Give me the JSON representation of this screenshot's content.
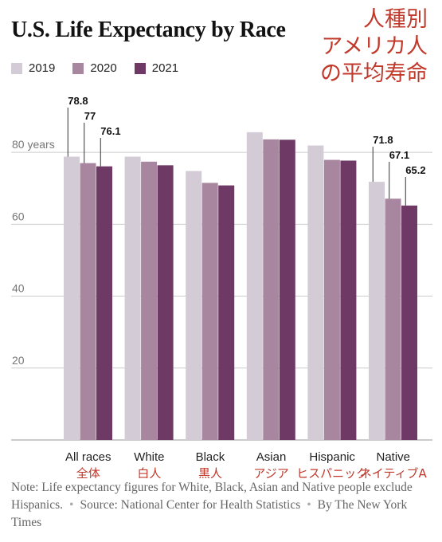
{
  "title": "U.S. Life Expectancy by Race",
  "jp_title": [
    "人種別",
    "アメリカ人",
    "の平均寿命"
  ],
  "note": {
    "text": "Note: Life expectancy figures for White, Black, Asian and Native people exclude Hispanics.",
    "source": "Source: National Center for Health Statistics",
    "credit": "By The New York Times"
  },
  "colors": {
    "2019": "#d3cbd6",
    "2020": "#a8869f",
    "2021": "#6e3a65",
    "grid": "#cccccc",
    "annotation": "#c0392b"
  },
  "chart_data": {
    "type": "bar",
    "title": "U.S. Life Expectancy by Race",
    "categories": [
      "All races",
      "White",
      "Black",
      "Asian",
      "Hispanic",
      "Native"
    ],
    "categories_jp": [
      "全体",
      "白人",
      "黒人",
      "アジア",
      "ヒスパニック",
      "ネイティブA"
    ],
    "series": [
      {
        "name": "2019",
        "values": [
          78.8,
          78.8,
          74.8,
          85.6,
          81.9,
          71.8
        ]
      },
      {
        "name": "2020",
        "values": [
          77,
          77.4,
          71.5,
          83.6,
          77.9,
          67.1
        ]
      },
      {
        "name": "2021",
        "values": [
          76.1,
          76.4,
          70.8,
          83.5,
          77.7,
          65.2
        ]
      }
    ],
    "data_labels": [
      {
        "category": "All races",
        "values": [
          "78.8",
          "77",
          "76.1"
        ]
      },
      {
        "category": "Native",
        "values": [
          "71.8",
          "67.1",
          "65.2"
        ]
      }
    ],
    "yticks": [
      20,
      40,
      60,
      80
    ],
    "ytick_labels": [
      "20",
      "40",
      "60",
      "80 years"
    ],
    "ylim": [
      0,
      90
    ],
    "grid": true,
    "legend": "top-left"
  }
}
